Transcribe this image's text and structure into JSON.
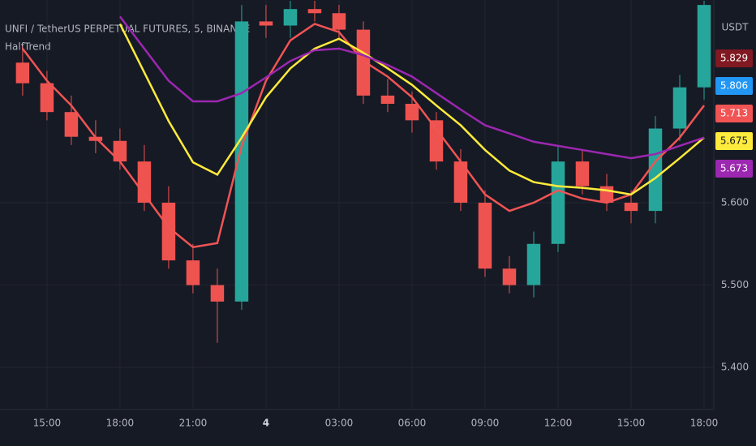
{
  "chart_data": {
    "type": "candlestick",
    "title": "UNFI / TetherUS PERPETUAL FUTURES, 5, BINANCE",
    "indicator": "HalfTrend",
    "currency": "USDT",
    "x": [
      14,
      15,
      16,
      17,
      18,
      19,
      20,
      21,
      22,
      23,
      24,
      25,
      26,
      27,
      28,
      29,
      30,
      31,
      32,
      33,
      34,
      35,
      36,
      37,
      38,
      39,
      40,
      41,
      42
    ],
    "open": [
      5.77,
      5.745,
      5.71,
      5.68,
      5.675,
      5.65,
      5.6,
      5.53,
      5.5,
      5.48,
      5.82,
      5.815,
      5.835,
      5.83,
      5.81,
      5.73,
      5.72,
      5.7,
      5.65,
      5.6,
      5.52,
      5.5,
      5.55,
      5.65,
      5.62,
      5.6,
      5.59,
      5.69,
      5.74
    ],
    "high": [
      5.79,
      5.76,
      5.73,
      5.7,
      5.69,
      5.67,
      5.62,
      5.55,
      5.52,
      5.84,
      5.84,
      5.845,
      5.845,
      5.84,
      5.82,
      5.75,
      5.735,
      5.71,
      5.665,
      5.615,
      5.535,
      5.565,
      5.67,
      5.665,
      5.635,
      5.615,
      5.705,
      5.755,
      5.845
    ],
    "low": [
      5.73,
      5.7,
      5.67,
      5.66,
      5.64,
      5.59,
      5.52,
      5.49,
      5.43,
      5.47,
      5.8,
      5.8,
      5.82,
      5.8,
      5.72,
      5.71,
      5.685,
      5.64,
      5.59,
      5.51,
      5.49,
      5.485,
      5.54,
      5.61,
      5.59,
      5.575,
      5.575,
      5.675,
      5.725
    ],
    "close": [
      5.745,
      5.71,
      5.68,
      5.675,
      5.65,
      5.6,
      5.53,
      5.5,
      5.48,
      5.82,
      5.815,
      5.835,
      5.83,
      5.81,
      5.73,
      5.72,
      5.7,
      5.65,
      5.6,
      5.52,
      5.5,
      5.55,
      5.65,
      5.62,
      5.6,
      5.59,
      5.69,
      5.74,
      5.84
    ],
    "up_color": "#26a69a",
    "down_color": "#ef5350",
    "series": [
      {
        "color": "#f05454",
        "values": [
          5.787,
          5.748,
          5.718,
          5.679,
          5.65,
          5.61,
          5.57,
          5.546,
          5.551,
          5.669,
          5.748,
          5.797,
          5.817,
          5.807,
          5.772,
          5.753,
          5.728,
          5.689,
          5.65,
          5.61,
          5.59,
          5.6,
          5.615,
          5.605,
          5.6,
          5.61,
          5.65,
          5.679,
          5.718
        ]
      },
      {
        "color": "#ffeb3b",
        "values": [
          null,
          null,
          null,
          null,
          5.817,
          5.758,
          5.699,
          5.649,
          5.634,
          5.679,
          5.728,
          5.763,
          5.787,
          5.799,
          5.782,
          5.763,
          5.743,
          5.718,
          5.694,
          5.664,
          5.639,
          5.625,
          5.62,
          5.618,
          5.615,
          5.61,
          5.63,
          5.654,
          5.679
        ]
      },
      {
        "color": "#9c27b0",
        "values": [
          null,
          null,
          null,
          null,
          5.826,
          5.787,
          5.748,
          5.723,
          5.723,
          5.733,
          5.752,
          5.772,
          5.785,
          5.787,
          5.779,
          5.767,
          5.753,
          5.733,
          5.713,
          5.694,
          5.684,
          5.674,
          5.669,
          5.664,
          5.659,
          5.654,
          5.659,
          5.669,
          5.679
        ]
      }
    ],
    "xlim": [
      13.07,
      42.4
    ],
    "ylim": [
      5.349,
      5.846
    ],
    "xticks": [
      {
        "value": 15,
        "label": "15:00"
      },
      {
        "value": 18,
        "label": "18:00"
      },
      {
        "value": 21,
        "label": "21:00"
      },
      {
        "value": 24,
        "label": "4"
      },
      {
        "value": 27,
        "label": "03:00"
      },
      {
        "value": 30,
        "label": "06:00"
      },
      {
        "value": 33,
        "label": "09:00"
      },
      {
        "value": 36,
        "label": "12:00"
      },
      {
        "value": 39,
        "label": "15:00"
      },
      {
        "value": 42,
        "label": "18:00"
      }
    ],
    "yticks": [
      {
        "value": 5.4,
        "label": "5.400"
      },
      {
        "value": 5.5,
        "label": "5.500"
      },
      {
        "value": 5.6,
        "label": "5.600"
      }
    ],
    "grid": true,
    "price_tags": [
      {
        "value": 5.829,
        "color": "#801922"
      },
      {
        "value": 5.806,
        "color": "#2196f3"
      },
      {
        "value": 5.713,
        "color": "#f05454"
      },
      {
        "value": 5.675,
        "color": "#ffeb3b"
      },
      {
        "value": 5.673,
        "color": "#9c27b0"
      }
    ]
  }
}
